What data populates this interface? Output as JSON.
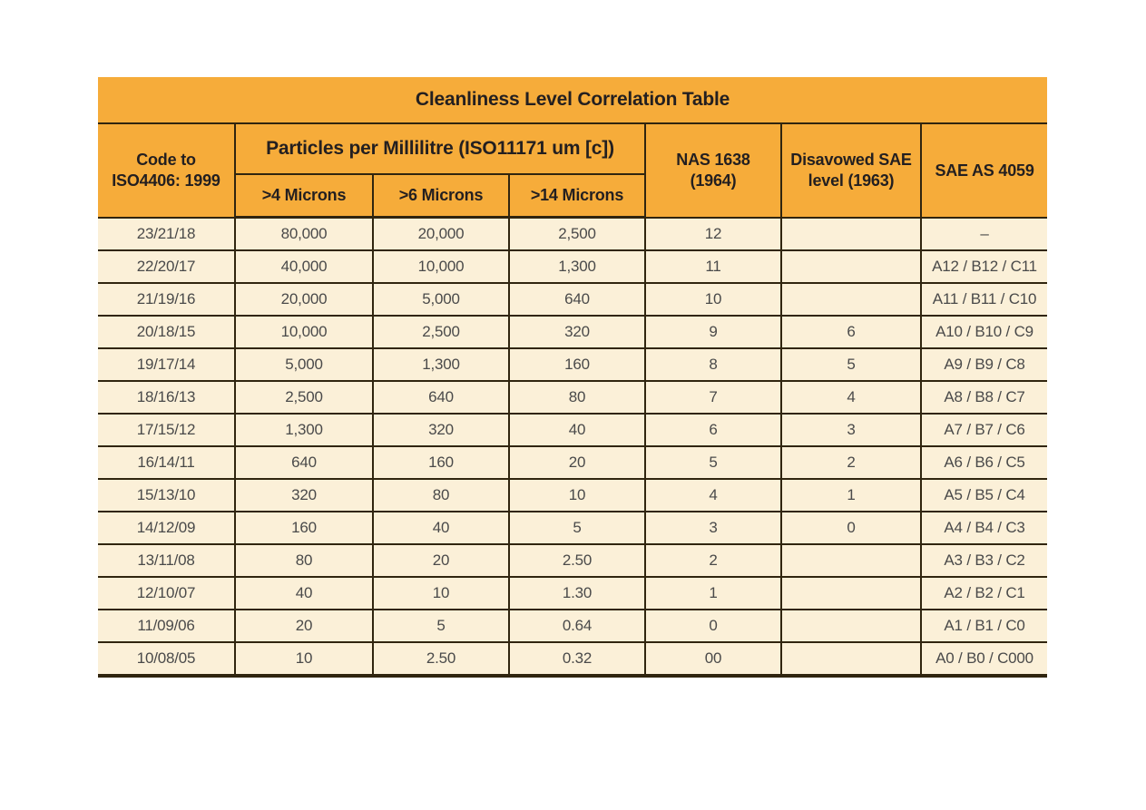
{
  "colors": {
    "header_bg": "#F6AC3A",
    "row_bg": "#FBF0D8",
    "border": "#30250F",
    "header_text": "#231F20",
    "body_text": "#4A4A4A"
  },
  "table": {
    "title": "Cleanliness Level Correlation Table",
    "columns": {
      "code": {
        "line1": "Code to",
        "line2": "ISO4406: 1999"
      },
      "particles_group": "Particles per Millilitre (ISO11171 um [c])",
      "micron4": ">4 Microns",
      "micron6": ">6 Microns",
      "micron14": ">14 Microns",
      "nas": {
        "line1": "NAS 1638",
        "line2": "(1964)"
      },
      "disavowed": {
        "line1": "Disavowed SAE",
        "line2": "level (1963)"
      },
      "sae": "SAE AS 4059"
    },
    "rows": [
      [
        "23/21/18",
        "80,000",
        "20,000",
        "2,500",
        "12",
        "",
        "–"
      ],
      [
        "22/20/17",
        "40,000",
        "10,000",
        "1,300",
        "11",
        "",
        "A12 / B12 / C11"
      ],
      [
        "21/19/16",
        "20,000",
        "5,000",
        "640",
        "10",
        "",
        "A11 / B11 / C10"
      ],
      [
        "20/18/15",
        "10,000",
        "2,500",
        "320",
        "9",
        "6",
        "A10 / B10 / C9"
      ],
      [
        "19/17/14",
        "5,000",
        "1,300",
        "160",
        "8",
        "5",
        "A9 / B9 / C8"
      ],
      [
        "18/16/13",
        "2,500",
        "640",
        "80",
        "7",
        "4",
        "A8 / B8 / C7"
      ],
      [
        "17/15/12",
        "1,300",
        "320",
        "40",
        "6",
        "3",
        "A7 / B7 / C6"
      ],
      [
        "16/14/11",
        "640",
        "160",
        "20",
        "5",
        "2",
        "A6 / B6 / C5"
      ],
      [
        "15/13/10",
        "320",
        "80",
        "10",
        "4",
        "1",
        "A5 / B5 / C4"
      ],
      [
        "14/12/09",
        "160",
        "40",
        "5",
        "3",
        "0",
        "A4 / B4 / C3"
      ],
      [
        "13/11/08",
        "80",
        "20",
        "2.50",
        "2",
        "",
        "A3 / B3 / C2"
      ],
      [
        "12/10/07",
        "40",
        "10",
        "1.30",
        "1",
        "",
        "A2 / B2 / C1"
      ],
      [
        "11/09/06",
        "20",
        "5",
        "0.64",
        "0",
        "",
        "A1 / B1 / C0"
      ],
      [
        "10/08/05",
        "10",
        "2.50",
        "0.32",
        "00",
        "",
        "A0 / B0 / C000"
      ]
    ]
  }
}
